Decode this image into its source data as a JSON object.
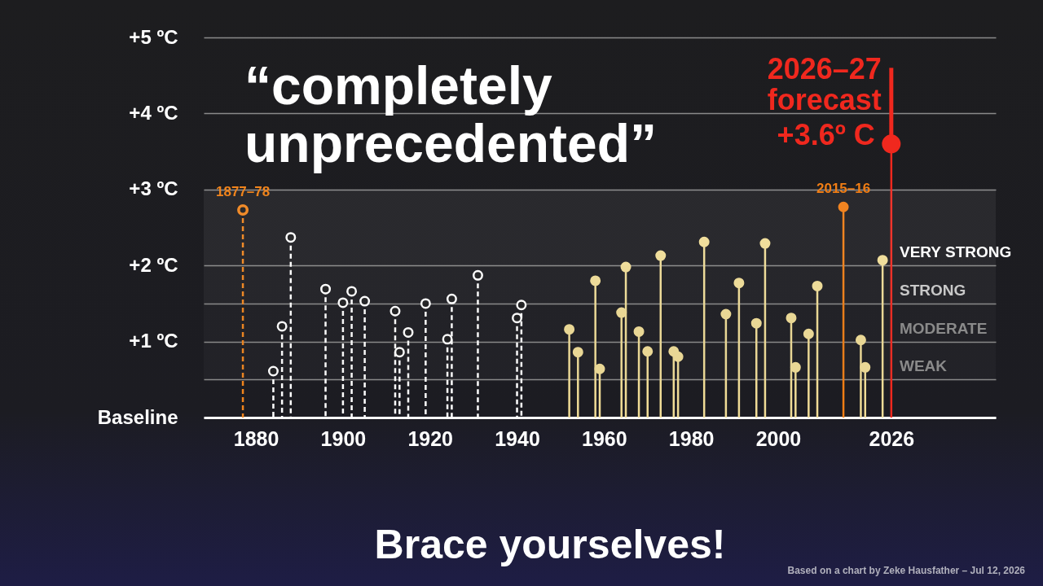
{
  "chart_data": {
    "type": "lollipop",
    "title": "“completely unprecedented”",
    "subtitle": "Brace yourselves!",
    "annotations": [
      "Based on a chart by Zeke Hausfather – Jul 12, 2026"
    ],
    "bands": [
      {
        "axis": "y",
        "from": 0.5,
        "to": 1,
        "label": "WEAK",
        "color": "#8a8a8a"
      },
      {
        "axis": "y",
        "from": 1,
        "to": 1.5,
        "label": "MODERATE",
        "color": "#8a8a8a"
      },
      {
        "axis": "y",
        "from": 1.5,
        "to": 2,
        "label": "STRONG",
        "color": "#c8c8c8"
      },
      {
        "axis": "y",
        "from": 2,
        "to": 3,
        "label": "VERY STRONG",
        "color": "#ffffff"
      }
    ],
    "xlim": [
      1868,
      2050
    ],
    "xticks": [
      1880,
      1900,
      1920,
      1940,
      1960,
      1980,
      2000,
      2026
    ],
    "ylim": [
      0,
      5
    ],
    "yticks": [
      {
        "value": 0,
        "label": "Baseline"
      },
      {
        "value": 0.5,
        "label": null
      },
      {
        "value": 1,
        "label": "+1 ºC"
      },
      {
        "value": 1.5,
        "label": null
      },
      {
        "value": 2,
        "label": "+2 ºC"
      },
      {
        "value": 3,
        "label": "+3 ºC"
      },
      {
        "value": 4,
        "label": "+4 ºC"
      },
      {
        "value": 5,
        "label": "+5 ºC"
      }
    ],
    "grid": "y",
    "legend": false,
    "marker": "circle",
    "series": [
      {
        "name": "1877–78",
        "color": "#f0841c",
        "line_style": "dashed",
        "x": [
          1877
        ],
        "values": [
          2.73
        ]
      },
      {
        "color": "#ffffff",
        "line_style": "dashed",
        "x": [
          1884,
          1886,
          1888,
          1896,
          1900,
          1902,
          1905,
          1912,
          1913,
          1915,
          1919,
          1924,
          1925,
          1931,
          1940,
          1941
        ],
        "values": [
          0.61,
          1.2,
          2.37,
          1.69,
          1.51,
          1.66,
          1.53,
          1.4,
          0.86,
          1.12,
          1.5,
          1.03,
          1.56,
          1.87,
          1.31,
          1.48
        ]
      },
      {
        "color": "#f0dc96",
        "line_style": "solid",
        "x": [
          1952,
          1954,
          1958,
          1959,
          1964,
          1965,
          1968,
          1970,
          1973,
          1976,
          1977,
          1983,
          1988,
          1991,
          1995,
          1997,
          2003,
          2004,
          2007,
          2009,
          2019,
          2020,
          2024
        ],
        "values": [
          1.16,
          0.86,
          1.8,
          0.64,
          1.38,
          1.98,
          1.13,
          0.87,
          2.13,
          0.87,
          0.8,
          2.31,
          1.36,
          1.77,
          1.24,
          2.29,
          1.31,
          0.66,
          1.1,
          1.73,
          1.02,
          0.66,
          2.07
        ]
      },
      {
        "name": "2015–16",
        "color": "#f07d14",
        "line_style": "solid",
        "x": [
          2015
        ],
        "values": [
          2.77
        ]
      },
      {
        "name": "2026–27 forecast",
        "color": "#f0281e",
        "line_style": "solid",
        "x": [
          2026
        ],
        "values": [
          3.6
        ],
        "value_labels": [
          "+3.6º C"
        ],
        "errors": [
          [
            3.6,
            4.6
          ]
        ]
      }
    ]
  }
}
